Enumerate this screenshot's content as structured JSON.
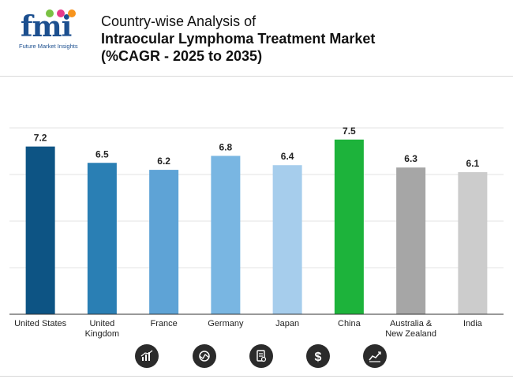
{
  "brand": {
    "logo_text": "fmi",
    "logo_subtitle": "Future Market Insights"
  },
  "title": {
    "line1": "Country-wise Analysis of",
    "line2": "Intraocular Lymphoma Treatment Market",
    "line3": "(%CAGR - 2025 to 2035)"
  },
  "chart_data": {
    "type": "bar",
    "title": "Country-wise Analysis of Intraocular Lymphoma Treatment Market (%CAGR - 2025 to 2035)",
    "categories": [
      "United States",
      "United Kingdom",
      "France",
      "Germany",
      "Japan",
      "China",
      "Australia & New Zealand",
      "India"
    ],
    "category_lines": [
      [
        "United States"
      ],
      [
        "United",
        "Kingdom"
      ],
      [
        "France"
      ],
      [
        "Germany"
      ],
      [
        "Japan"
      ],
      [
        "China"
      ],
      [
        "Australia &",
        "New Zealand"
      ],
      [
        "India"
      ]
    ],
    "values": [
      7.2,
      6.5,
      6.2,
      6.8,
      6.4,
      7.5,
      6.3,
      6.1
    ],
    "value_labels": [
      "7.2",
      "6.5",
      "6.2",
      "6.8",
      "6.4",
      "7.5",
      "6.3",
      "6.1"
    ],
    "colors": [
      "#0d5484",
      "#2a7fb4",
      "#5ea3d6",
      "#79b6e2",
      "#a6cdec",
      "#1db33b",
      "#a6a6a6",
      "#cccccc"
    ],
    "ylim": [
      0,
      8
    ],
    "grid": true,
    "xlabel": "",
    "ylabel": ""
  },
  "icons": [
    "bar-chart-icon",
    "pie-analysis-icon",
    "document-search-icon",
    "dollar-icon",
    "growth-chart-icon"
  ]
}
